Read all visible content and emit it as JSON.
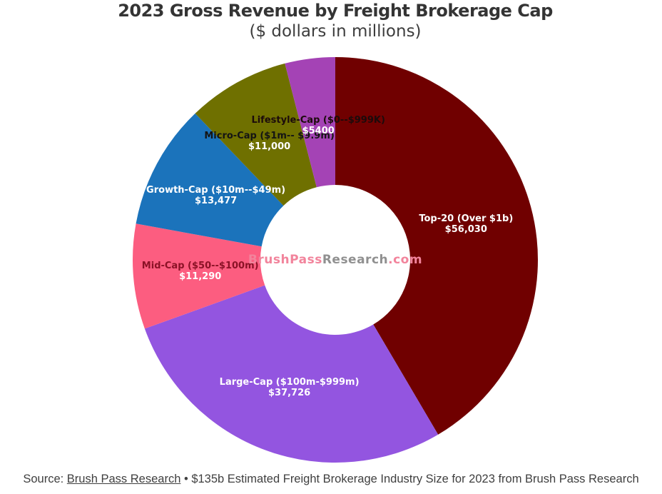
{
  "chart_data": {
    "type": "pie",
    "subtype": "donut",
    "title": "2023 Gross Revenue by Freight Brokerage Cap",
    "subtitle": "($ dollars in millions)",
    "legend_position": "none",
    "slices": [
      {
        "label": "Top-20 (Over $1b)",
        "value": 56030,
        "value_label": "$56,030",
        "color": "#700000",
        "label_color": "#ffffff"
      },
      {
        "label": "Large-Cap ($100m-$999m)",
        "value": 37726,
        "value_label": "$37,726",
        "color": "#9355e0",
        "label_color": "#ffffff"
      },
      {
        "label": "Mid-Cap ($50--$100m)",
        "value": 11290,
        "value_label": "$11,290",
        "color": "#fc5d80",
        "label_color": "#8b1226"
      },
      {
        "label": "Growth-Cap ($10m--$49m)",
        "value": 13477,
        "value_label": "$13,477",
        "color": "#1b73bb",
        "label_color": "#ffffff"
      },
      {
        "label": "Micro-Cap ($1m-- $9.9m)",
        "value": 11000,
        "value_label": "$11,000",
        "color": "#6f7000",
        "label_color": "#141414"
      },
      {
        "label": "Lifestyle-Cap ($0--$999K)",
        "value": 5400,
        "value_label": "$5400",
        "color": "#a443b5",
        "label_color": "#1c0b0b"
      }
    ],
    "value_text_color": "#ffffff",
    "start_angle_deg": 0,
    "direction": "clockwise"
  },
  "watermark": {
    "part1": "BrushPass",
    "part2": "Research",
    "part3": ".com",
    "accent_color": "#f2849c",
    "neutral_color": "#909090"
  },
  "source": {
    "prefix": "Source: ",
    "link_text": "Brush Pass Research",
    "suffix": " • $135b Estimated Freight Brokerage Industry Size for 2023 from Brush Pass Research"
  }
}
